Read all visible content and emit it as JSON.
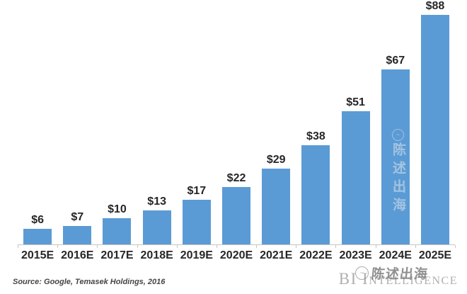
{
  "chart_data": {
    "type": "bar",
    "title": "",
    "xlabel": "",
    "ylabel": "",
    "categories": [
      "2015E",
      "2016E",
      "2017E",
      "2018E",
      "2019E",
      "2020E",
      "2021E",
      "2022E",
      "2023E",
      "2024E",
      "2025E"
    ],
    "values": [
      6,
      7,
      10,
      13,
      17,
      22,
      29,
      38,
      51,
      67,
      88
    ],
    "value_labels": [
      "$6",
      "$7",
      "$10",
      "$13",
      "$17",
      "$22",
      "$29",
      "$38",
      "$51",
      "$67",
      "$88"
    ],
    "ylim": [
      0,
      94
    ],
    "grid": false,
    "legend": false,
    "bar_color": "#5B9BD5",
    "axis_color": "#c6c6c6",
    "label_color": "#262626"
  },
  "source_note": "Source: Google, Temasek Holdings, 2016",
  "branding": {
    "text": "BI Intelligence"
  },
  "watermark": {
    "text": "陈述出海"
  }
}
